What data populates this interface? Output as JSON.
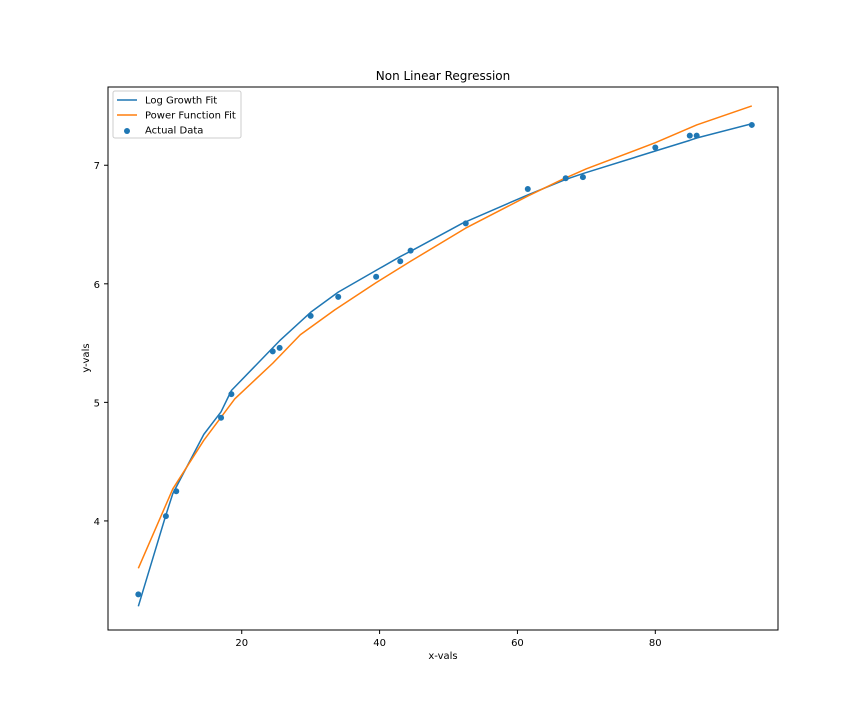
{
  "chart_data": {
    "type": "line",
    "title": "Non Linear Regression",
    "xlabel": "x-vals",
    "ylabel": "y-vals",
    "xlim": [
      0.6,
      97.8
    ],
    "ylim": [
      3.08,
      7.66
    ],
    "xticks": [
      20,
      40,
      60,
      80
    ],
    "yticks": [
      4,
      5,
      6,
      7
    ],
    "grid": false,
    "legend_position": "top-left",
    "series": [
      {
        "name": "Log Growth Fit",
        "kind": "line",
        "color": "#1f77b4",
        "x": [
          5,
          9,
          10,
          14.5,
          17,
          18.5,
          24,
          25.5,
          30,
          34,
          40,
          43,
          45,
          52,
          61.5,
          67,
          69.5,
          80,
          85,
          86,
          94
        ],
        "y": [
          3.28,
          4.05,
          4.23,
          4.73,
          4.92,
          5.1,
          5.43,
          5.52,
          5.76,
          5.93,
          6.13,
          6.23,
          6.29,
          6.51,
          6.75,
          6.88,
          6.93,
          7.12,
          7.21,
          7.23,
          7.35
        ]
      },
      {
        "name": "Power Function Fit",
        "kind": "line",
        "color": "#ff7f0e",
        "x": [
          5,
          10,
          14.5,
          19,
          24.5,
          28.5,
          33.5,
          39.5,
          44.5,
          52.5,
          61.5,
          66.5,
          70,
          80,
          86,
          94
        ],
        "y": [
          3.6,
          4.27,
          4.68,
          5.03,
          5.33,
          5.57,
          5.78,
          6.01,
          6.19,
          6.47,
          6.74,
          6.88,
          6.97,
          7.19,
          7.34,
          7.5
        ]
      },
      {
        "name": "Actual Data",
        "kind": "scatter",
        "color": "#1f77b4",
        "x": [
          5,
          9,
          10.5,
          17,
          18.5,
          24.5,
          25.5,
          30,
          34,
          39.5,
          43,
          44.5,
          52.5,
          61.5,
          67,
          69.5,
          80,
          85,
          86,
          94
        ],
        "y": [
          3.38,
          4.04,
          4.25,
          4.87,
          5.07,
          5.43,
          5.46,
          5.73,
          5.89,
          6.06,
          6.19,
          6.28,
          6.51,
          6.8,
          6.89,
          6.9,
          7.15,
          7.25,
          7.25,
          7.34
        ]
      }
    ]
  }
}
